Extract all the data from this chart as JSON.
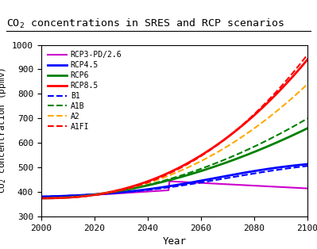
{
  "title": "CO$_2$ concentrations in SRES and RCP scenarios",
  "xlabel": "Year",
  "ylabel": "CO$_2$ concentration (ppmv)",
  "xlim": [
    2000,
    2100
  ],
  "ylim": [
    300,
    1000
  ],
  "xticks": [
    2000,
    2020,
    2040,
    2060,
    2080,
    2100
  ],
  "yticks": [
    300,
    400,
    500,
    600,
    700,
    800,
    900,
    1000
  ],
  "background_color": "#ffffff",
  "series": {
    "RCP3-PD/2.6": {
      "color": "#cc00cc",
      "linestyle": "-",
      "linewidth": 1.5
    },
    "RCP4.5": {
      "color": "#0000ff",
      "linestyle": "-",
      "linewidth": 2.0
    },
    "RCP6": {
      "color": "#008000",
      "linestyle": "-",
      "linewidth": 2.0
    },
    "RCP8.5": {
      "color": "#ff0000",
      "linestyle": "-",
      "linewidth": 2.0
    },
    "B1": {
      "color": "#0000ff",
      "linestyle": "--",
      "linewidth": 1.5
    },
    "A1B": {
      "color": "#008000",
      "linestyle": "--",
      "linewidth": 1.5
    },
    "A2": {
      "color": "#ffaa00",
      "linestyle": "--",
      "linewidth": 1.5
    },
    "A1FI": {
      "color": "#ff0000",
      "linestyle": "--",
      "linewidth": 1.5
    }
  }
}
